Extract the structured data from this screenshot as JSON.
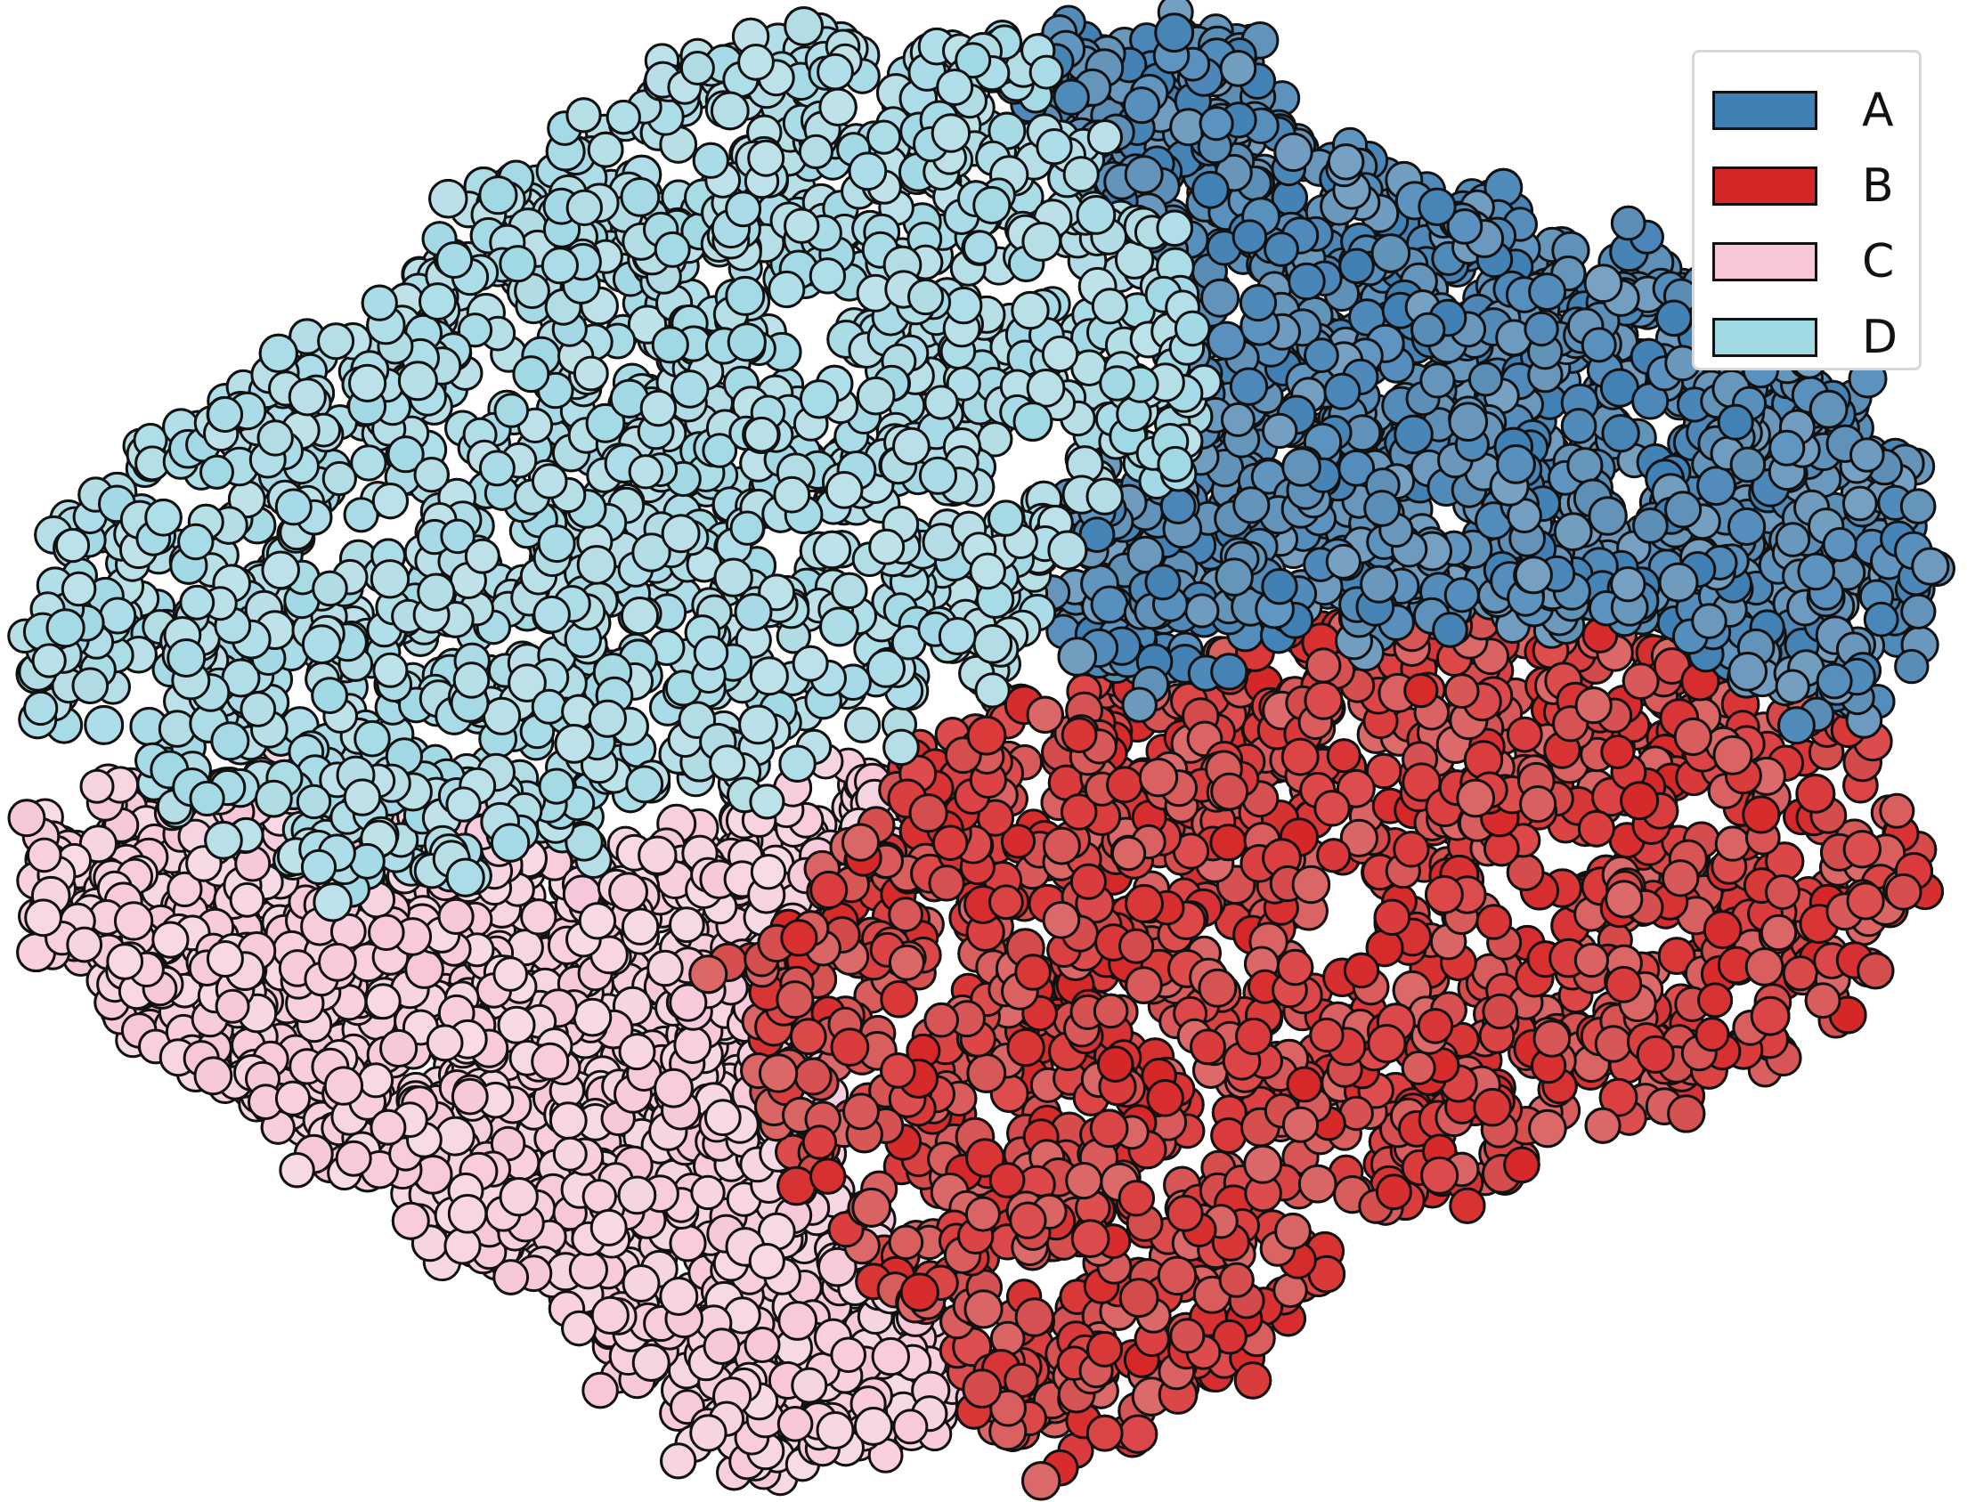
{
  "figure": {
    "type": "molecular-surface-rendering",
    "chains": [
      {
        "label": "A",
        "color": "#3f7fb3",
        "surface_color": "#5a8db5"
      },
      {
        "label": "B",
        "color": "#d62728",
        "surface_color": "#d44a4a"
      },
      {
        "label": "C",
        "color": "#f7c6d9",
        "surface_color": "#f6d3e0"
      },
      {
        "label": "D",
        "color": "#a0d8e4",
        "surface_color": "#b1dce4"
      }
    ]
  },
  "legend": {
    "items": [
      {
        "label": "A",
        "color": "#3f7fb3"
      },
      {
        "label": "B",
        "color": "#d62728"
      },
      {
        "label": "C",
        "color": "#f7c6d9"
      },
      {
        "label": "D",
        "color": "#a0d8e4"
      }
    ]
  }
}
